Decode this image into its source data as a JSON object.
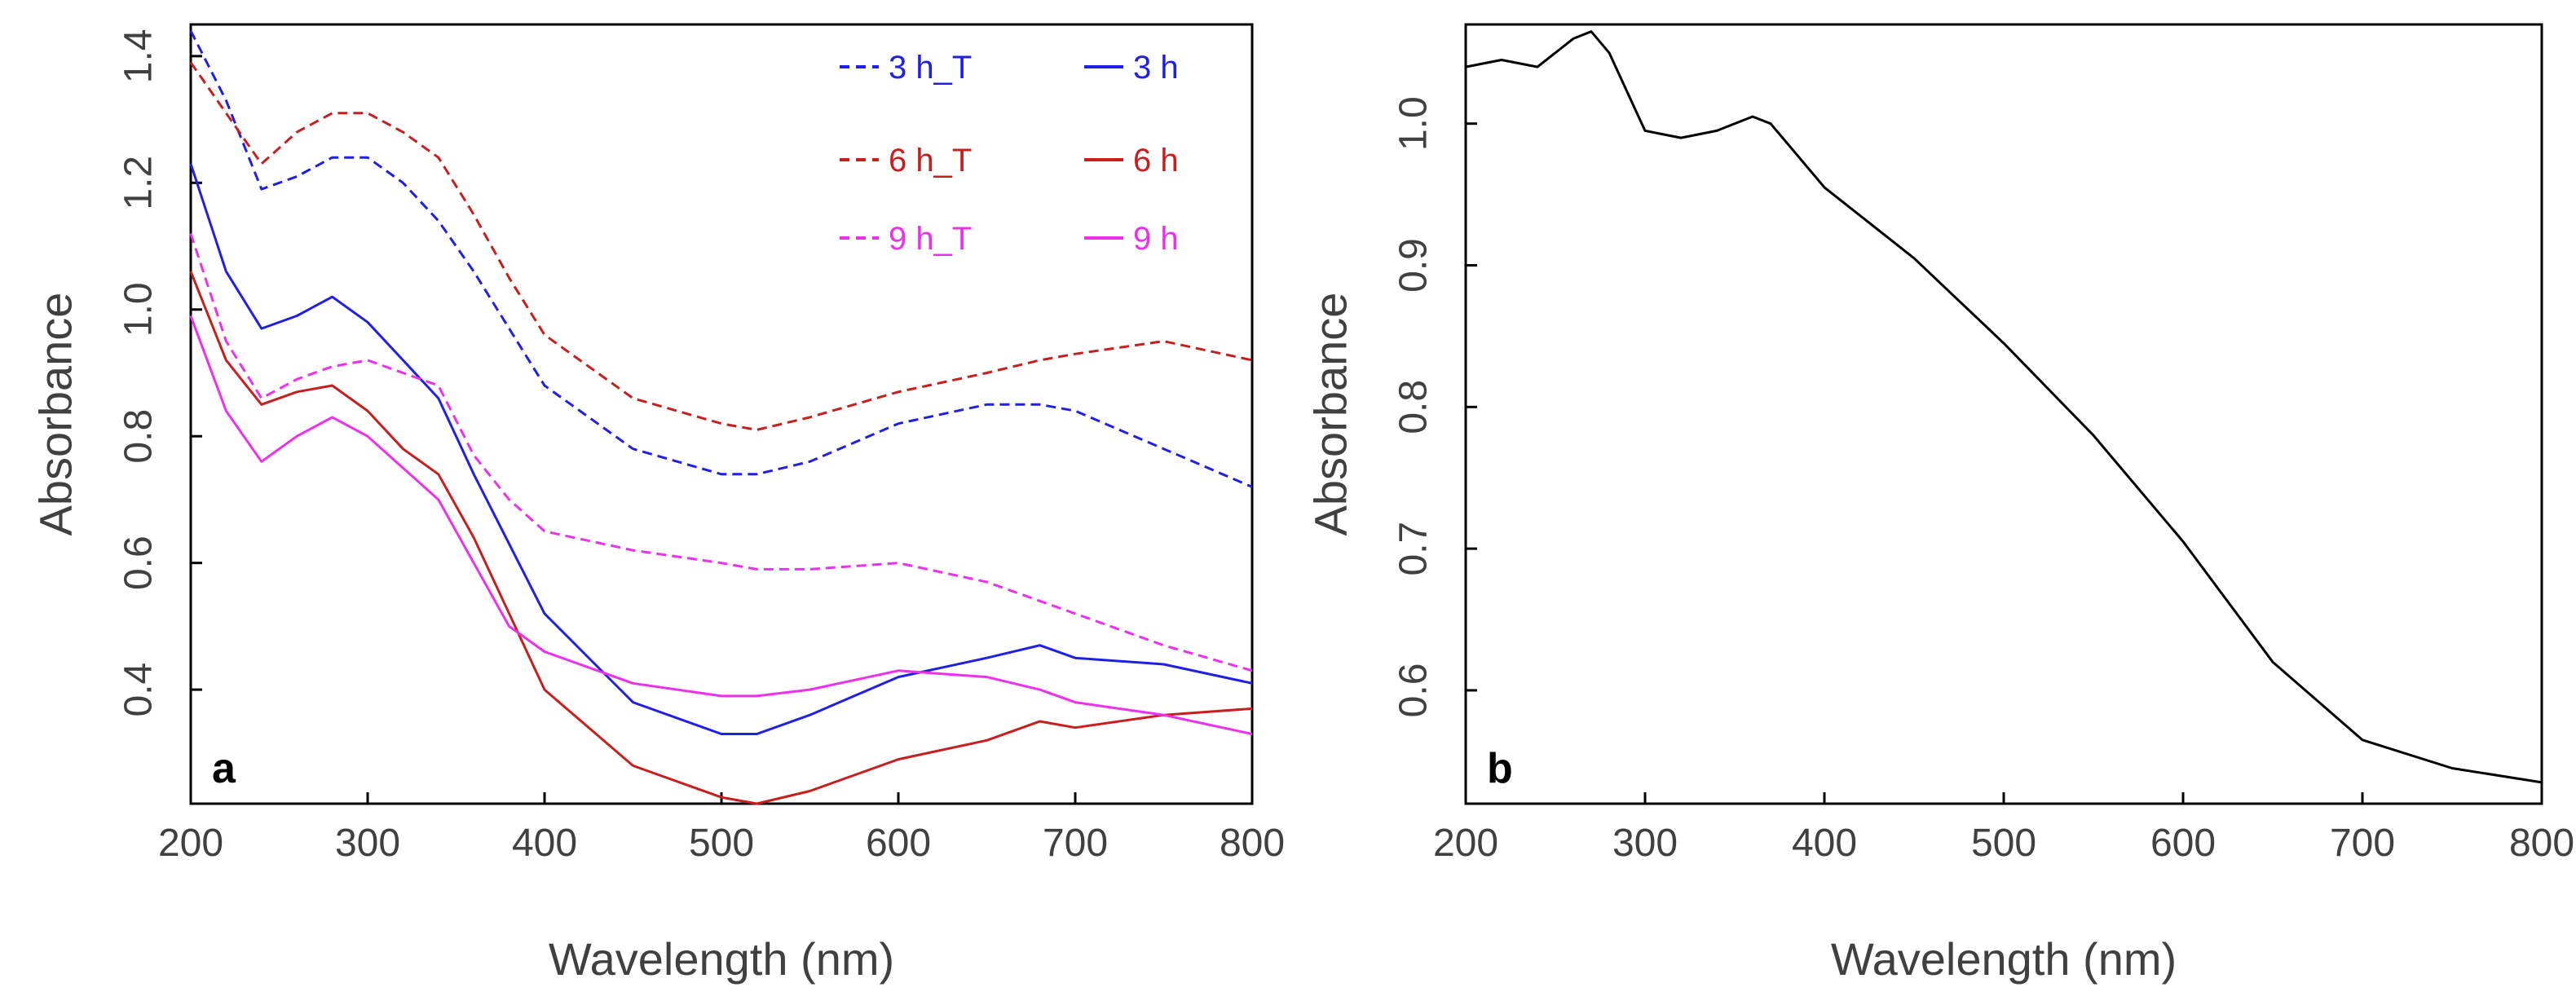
{
  "chart_data": [
    {
      "type": "line",
      "panel_label": "a",
      "xlabel": "Wavelength (nm)",
      "ylabel": "Absorbance",
      "xlim": [
        200,
        800
      ],
      "ylim": [
        0.22,
        1.45
      ],
      "xticks": [
        "200",
        "300",
        "400",
        "500",
        "600",
        "700",
        "800"
      ],
      "yticks": [
        "0.4",
        "0.6",
        "0.8",
        "1.0",
        "1.2",
        "1.4"
      ],
      "grid": false,
      "legend_placement": "top-right",
      "x": [
        200,
        220,
        240,
        260,
        280,
        300,
        320,
        340,
        360,
        380,
        400,
        450,
        500,
        520,
        550,
        600,
        650,
        680,
        700,
        750,
        800
      ],
      "series": [
        {
          "name": "3 h_T",
          "color": "#1f1fe8",
          "dash": true,
          "values": [
            1.44,
            1.33,
            1.19,
            1.21,
            1.24,
            1.24,
            1.2,
            1.14,
            1.06,
            0.97,
            0.88,
            0.78,
            0.74,
            0.74,
            0.76,
            0.82,
            0.85,
            0.85,
            0.84,
            0.78,
            0.72
          ]
        },
        {
          "name": "3 h",
          "color": "#1f1fe8",
          "dash": false,
          "values": [
            1.23,
            1.06,
            0.97,
            0.99,
            1.02,
            0.98,
            0.92,
            0.86,
            0.74,
            0.63,
            0.52,
            0.38,
            0.33,
            0.33,
            0.36,
            0.42,
            0.45,
            0.47,
            0.45,
            0.44,
            0.41
          ]
        },
        {
          "name": "6 h_T",
          "color": "#c81e1e",
          "dash": true,
          "values": [
            1.39,
            1.31,
            1.23,
            1.28,
            1.31,
            1.31,
            1.28,
            1.24,
            1.15,
            1.05,
            0.96,
            0.86,
            0.82,
            0.81,
            0.83,
            0.87,
            0.9,
            0.92,
            0.93,
            0.95,
            0.92
          ]
        },
        {
          "name": "6 h",
          "color": "#c81e1e",
          "dash": false,
          "values": [
            1.06,
            0.92,
            0.85,
            0.87,
            0.88,
            0.84,
            0.78,
            0.74,
            0.64,
            0.52,
            0.4,
            0.28,
            0.23,
            0.22,
            0.24,
            0.29,
            0.32,
            0.35,
            0.34,
            0.36,
            0.37
          ]
        },
        {
          "name": "9 h_T",
          "color": "#ee30ee",
          "dash": true,
          "values": [
            1.12,
            0.95,
            0.86,
            0.89,
            0.91,
            0.92,
            0.9,
            0.88,
            0.77,
            0.7,
            0.65,
            0.62,
            0.6,
            0.59,
            0.59,
            0.6,
            0.57,
            0.54,
            0.52,
            0.47,
            0.43
          ]
        },
        {
          "name": "9 h",
          "color": "#ee30ee",
          "dash": false,
          "values": [
            0.99,
            0.84,
            0.76,
            0.8,
            0.83,
            0.8,
            0.75,
            0.7,
            0.6,
            0.5,
            0.46,
            0.41,
            0.39,
            0.39,
            0.4,
            0.43,
            0.42,
            0.4,
            0.38,
            0.36,
            0.33
          ]
        }
      ]
    },
    {
      "type": "line",
      "panel_label": "b",
      "xlabel": "Wavelength (nm)",
      "ylabel": "Absorbance",
      "xlim": [
        200,
        800
      ],
      "ylim": [
        0.52,
        1.07
      ],
      "xticks": [
        "200",
        "300",
        "400",
        "500",
        "600",
        "700",
        "800"
      ],
      "yticks": [
        "0.6",
        "0.7",
        "0.8",
        "0.9",
        "1.0"
      ],
      "grid": false,
      "x": [
        200,
        220,
        240,
        260,
        270,
        280,
        300,
        320,
        340,
        360,
        370,
        380,
        400,
        450,
        500,
        550,
        600,
        650,
        700,
        750,
        800
      ],
      "series": [
        {
          "color": "#000000",
          "dash": false,
          "values": [
            1.04,
            1.045,
            1.04,
            1.06,
            1.065,
            1.05,
            0.995,
            0.99,
            0.995,
            1.005,
            1.0,
            0.985,
            0.955,
            0.905,
            0.845,
            0.78,
            0.705,
            0.62,
            0.565,
            0.545,
            0.535
          ]
        }
      ]
    }
  ]
}
